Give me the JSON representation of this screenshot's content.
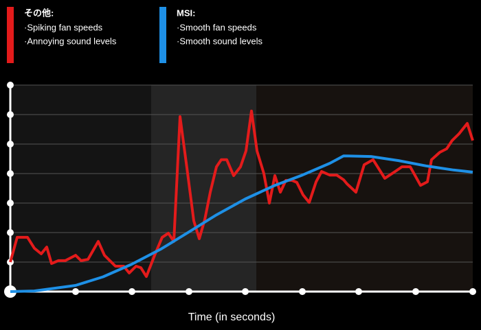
{
  "chart_data": {
    "type": "line",
    "x_label": "Time (in seconds)",
    "xlim": [
      0,
      673
    ],
    "xticks": [
      0,
      95,
      177,
      260,
      342,
      425,
      507,
      590,
      673
    ],
    "ylim": [
      0,
      7
    ],
    "yticks": [
      0,
      1,
      2,
      3,
      4,
      5,
      6,
      7
    ],
    "grid": true,
    "series": [
      {
        "name": "その他:",
        "notes": [
          "·Spiking fan speeds",
          "·Annoying sound levels"
        ],
        "color": "#e31b1b",
        "x": [
          0,
          10,
          25,
          35,
          45,
          53,
          60,
          70,
          80,
          95,
          103,
          113,
          128,
          137,
          153,
          165,
          173,
          183,
          190,
          198,
          210,
          221,
          230,
          238,
          247,
          257,
          267,
          275,
          283,
          291,
          300,
          307,
          315,
          325,
          335,
          343,
          351,
          359,
          369,
          377,
          385,
          393,
          401,
          410,
          417,
          426,
          435,
          445,
          453,
          465,
          475,
          485,
          490,
          503,
          515,
          528,
          545,
          560,
          570,
          582,
          597,
          607,
          613,
          625,
          635,
          643,
          653,
          665,
          673
        ],
        "values": [
          1.0,
          1.84,
          1.84,
          1.47,
          1.28,
          1.51,
          0.95,
          1.05,
          1.05,
          1.23,
          1.05,
          1.09,
          1.7,
          1.23,
          0.86,
          0.86,
          0.63,
          0.86,
          0.81,
          0.51,
          1.23,
          1.84,
          1.98,
          1.7,
          5.93,
          4.19,
          2.4,
          1.79,
          2.44,
          3.37,
          4.23,
          4.47,
          4.47,
          3.93,
          4.23,
          4.77,
          6.12,
          4.77,
          4.0,
          3.0,
          3.93,
          3.37,
          3.77,
          3.77,
          3.7,
          3.28,
          3.02,
          3.72,
          4.07,
          3.95,
          3.95,
          3.79,
          3.65,
          3.37,
          4.3,
          4.47,
          3.84,
          4.07,
          4.23,
          4.23,
          3.6,
          3.72,
          4.47,
          4.72,
          4.84,
          5.12,
          5.35,
          5.7,
          5.12
        ]
      },
      {
        "name": "MSI:",
        "notes": [
          "·Smooth fan speeds",
          "·Smooth sound levels"
        ],
        "color": "#1e90e6",
        "x": [
          0,
          35,
          95,
          135,
          177,
          220,
          260,
          300,
          342,
          385,
          425,
          465,
          485,
          525,
          565,
          605,
          645,
          673
        ],
        "values": [
          0,
          0.02,
          0.21,
          0.5,
          0.93,
          1.45,
          2.02,
          2.6,
          3.14,
          3.6,
          3.95,
          4.35,
          4.6,
          4.58,
          4.44,
          4.26,
          4.12,
          4.05
        ]
      }
    ]
  }
}
